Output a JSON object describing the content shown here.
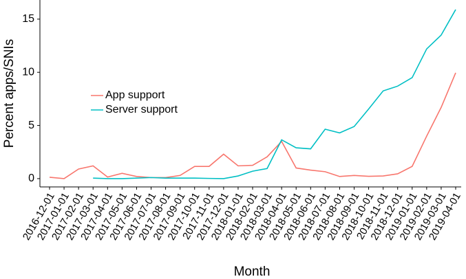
{
  "chart_data": {
    "type": "line",
    "x_label": "Month",
    "y_label": "Percent apps/SNIs",
    "categories": [
      "2016-12-01",
      "2017-01-01",
      "2017-02-01",
      "2017-03-01",
      "2017-04-01",
      "2017-05-01",
      "2017-06-01",
      "2017-07-01",
      "2017-08-01",
      "2017-09-01",
      "2017-10-01",
      "2017-11-01",
      "2017-12-01",
      "2018-01-01",
      "2018-02-01",
      "2018-03-01",
      "2018-04-01",
      "2018-05-01",
      "2018-06-01",
      "2018-07-01",
      "2018-08-01",
      "2018-09-01",
      "2018-10-01",
      "2018-11-01",
      "2018-12-01",
      "2019-01-01",
      "2019-02-01",
      "2019-03-01",
      "2019-04-01"
    ],
    "series": [
      {
        "name": "App support",
        "color": "#F8766D",
        "values": [
          0.13,
          0,
          0.9,
          1.2,
          0.15,
          0.5,
          0.2,
          0.1,
          0.1,
          0.3,
          1.15,
          1.15,
          2.3,
          1.2,
          1.25,
          2.05,
          3.5,
          1.0,
          0.8,
          0.65,
          0.2,
          0.3,
          0.22,
          0.25,
          0.45,
          1.15,
          4.0,
          6.7,
          9.95
        ]
      },
      {
        "name": "Server support",
        "color": "#00BFC4",
        "values": [
          null,
          null,
          null,
          0.05,
          0,
          0,
          0.05,
          0.1,
          0.05,
          0.05,
          0.05,
          0.02,
          0,
          0.25,
          0.7,
          0.95,
          3.65,
          2.9,
          2.8,
          4.65,
          4.3,
          4.9,
          6.55,
          8.25,
          8.7,
          9.5,
          12.2,
          13.5,
          15.9
        ]
      }
    ],
    "ylim": [
      -0.78,
      16.8
    ],
    "yticks": [
      0,
      5,
      10,
      15
    ],
    "grid": false
  }
}
